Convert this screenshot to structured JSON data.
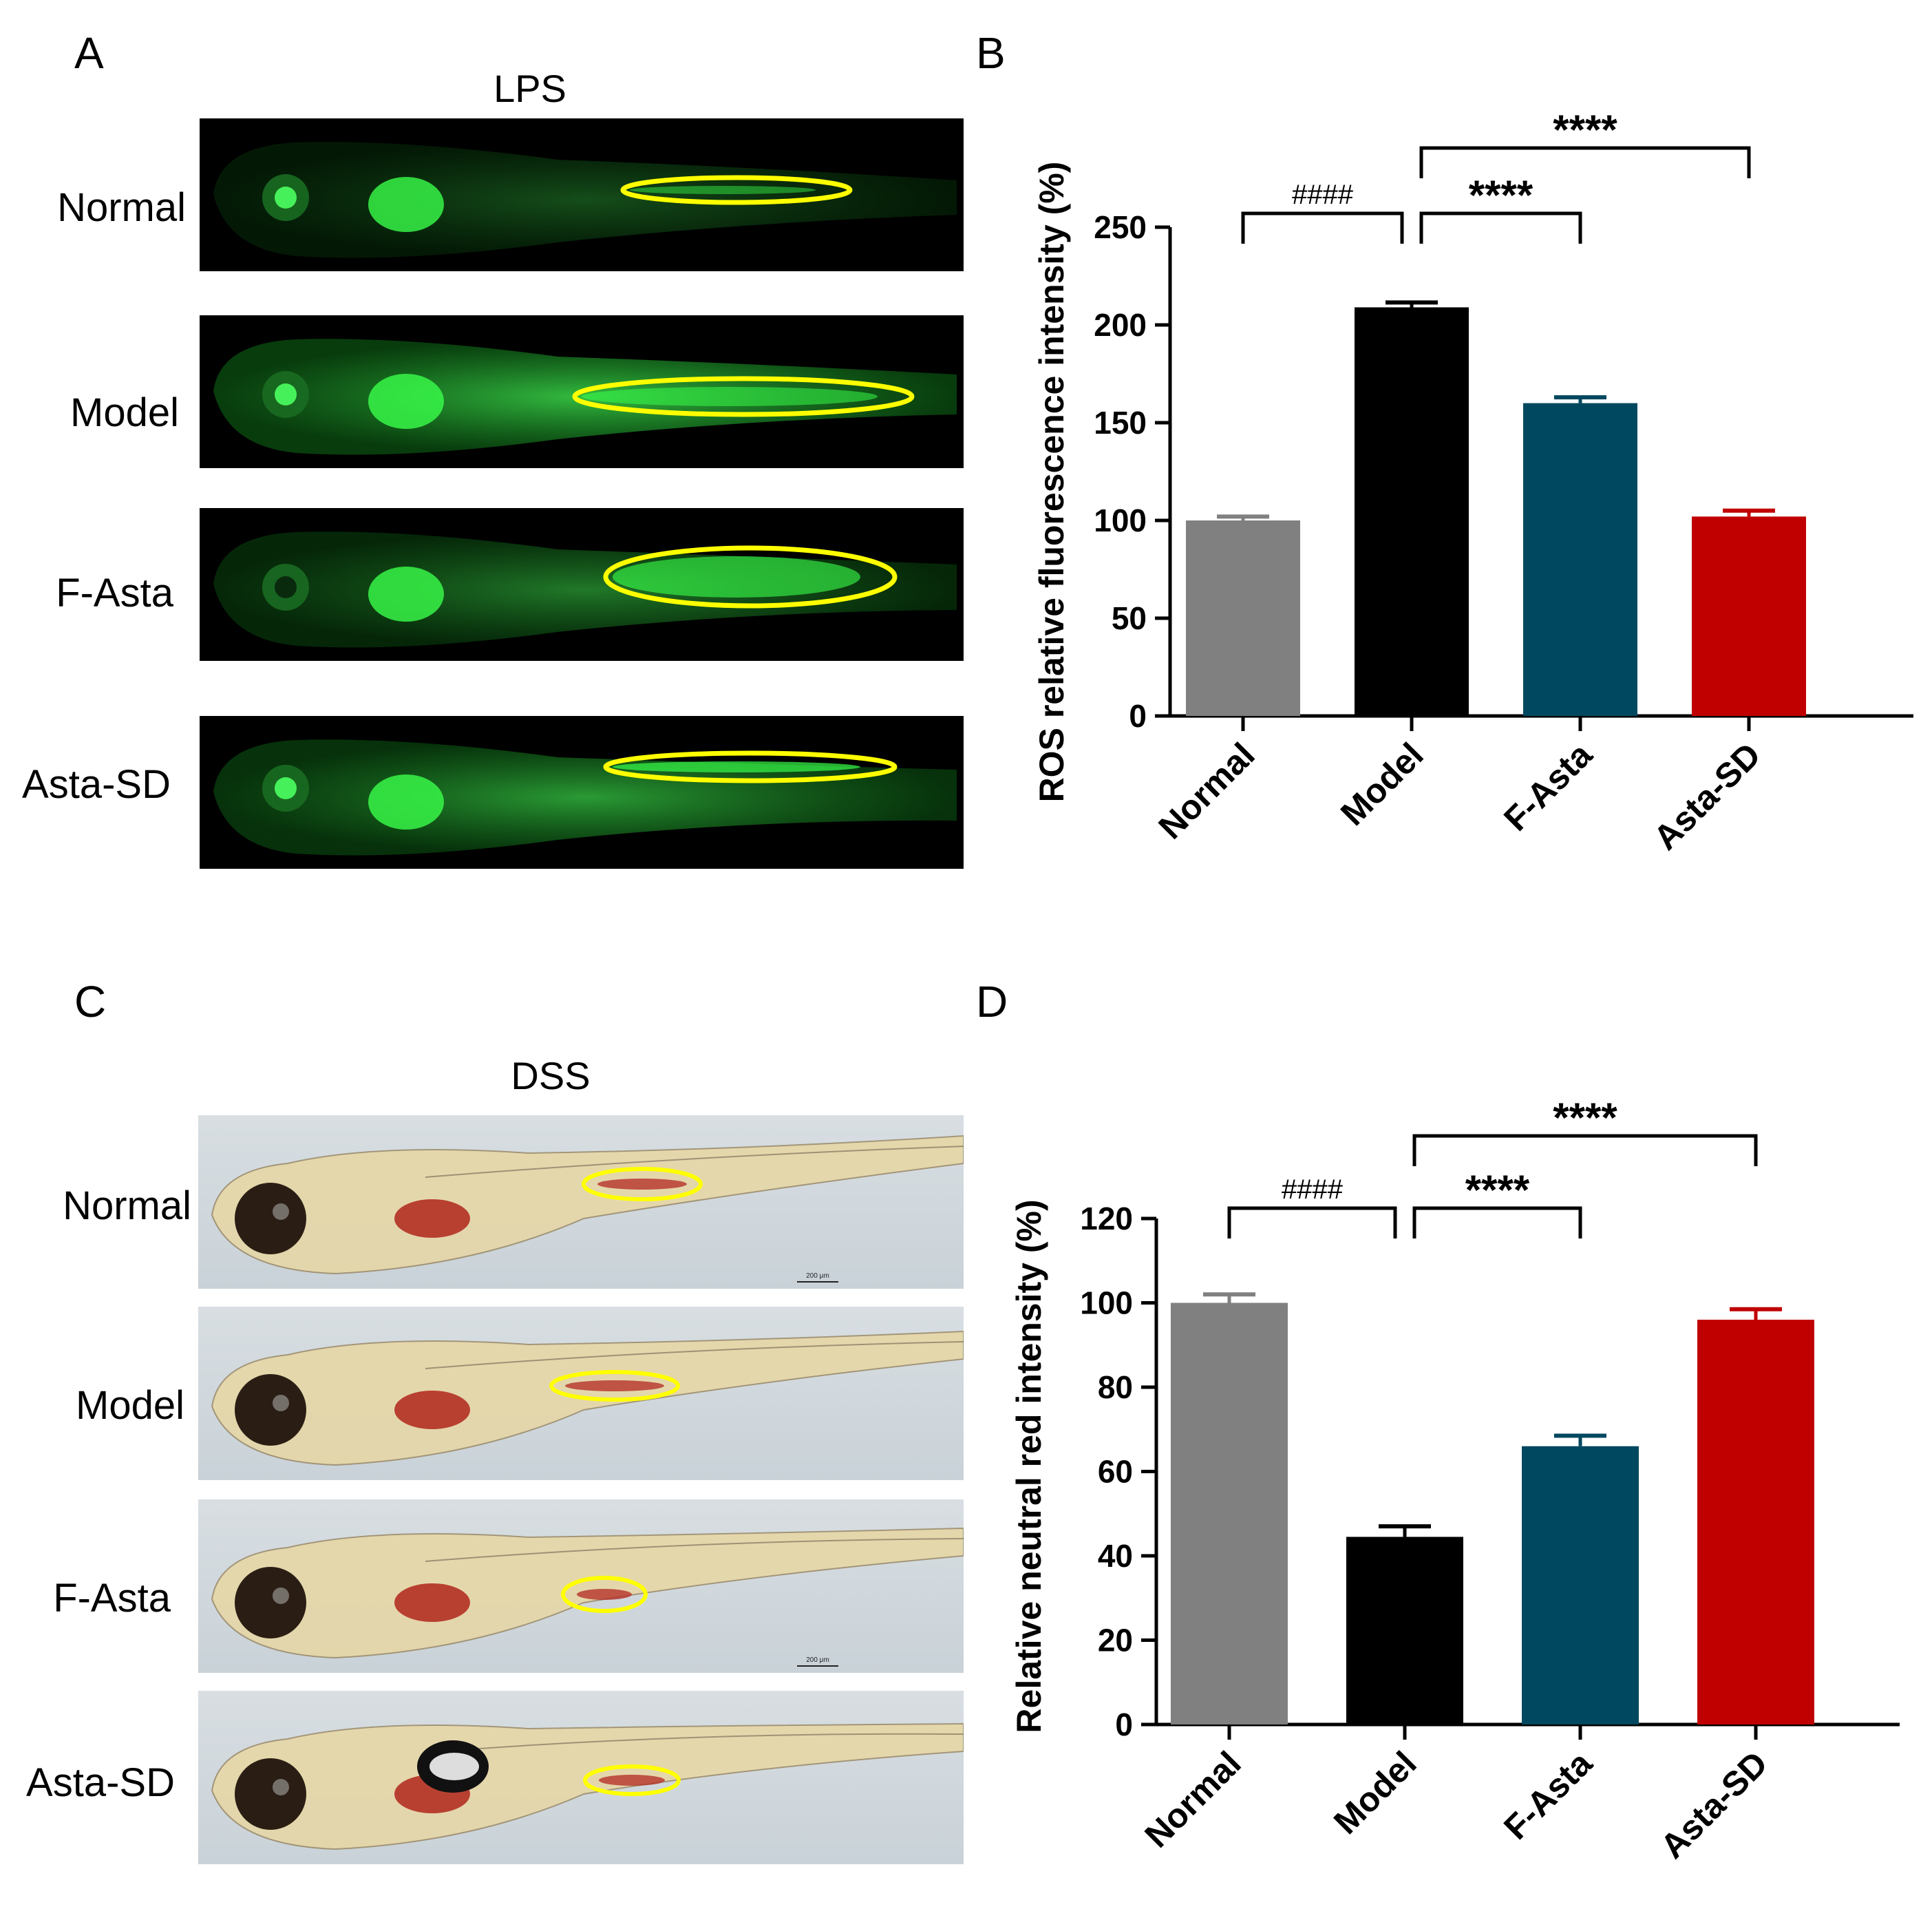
{
  "panels": {
    "A": {
      "letter": "A",
      "condition": "LPS",
      "rows": [
        "Normal",
        "Model",
        "F-Asta",
        "Asta-SD"
      ]
    },
    "C": {
      "letter": "C",
      "condition": "DSS",
      "rows": [
        "Normal",
        "Model",
        "F-Asta",
        "Asta-SD"
      ],
      "scale_bar_label": "200 μm"
    },
    "B": {
      "letter": "B"
    },
    "D": {
      "letter": "D"
    }
  },
  "colors": {
    "normal": "#808080",
    "model": "#000000",
    "f_asta": "#00485f",
    "asta_sd": "#c00000",
    "highlight_ellipse": "#ffff00",
    "fluorescence": "#22cc33"
  },
  "chart_data": [
    {
      "id": "B",
      "type": "bar",
      "categories": [
        "Normal",
        "Model",
        "F-Asta",
        "Asta-SD"
      ],
      "values": [
        100,
        209,
        160,
        102
      ],
      "errors": [
        2,
        2.5,
        3,
        3
      ],
      "ylabel": "ROS relative fluorescence intensity (%)",
      "ylim": [
        0,
        250
      ],
      "yticks": [
        0,
        50,
        100,
        150,
        200,
        250
      ],
      "annotations": [
        {
          "from": "Normal",
          "to": "Model",
          "label": "####",
          "level": 1
        },
        {
          "from": "Model",
          "to": "F-Asta",
          "label": "****",
          "level": 1
        },
        {
          "from": "Model",
          "to": "Asta-SD",
          "label": "****",
          "level": 2
        }
      ]
    },
    {
      "id": "D",
      "type": "bar",
      "categories": [
        "Normal",
        "Model",
        "F-Asta",
        "Asta-SD"
      ],
      "values": [
        100,
        44.5,
        66,
        96
      ],
      "errors": [
        2,
        2.5,
        2.5,
        2.5
      ],
      "ylabel": "Relative neutral red intensity (%)",
      "ylim": [
        0,
        120
      ],
      "yticks": [
        0,
        20,
        40,
        60,
        80,
        100,
        120
      ],
      "annotations": [
        {
          "from": "Normal",
          "to": "Model",
          "label": "####",
          "level": 1
        },
        {
          "from": "Model",
          "to": "F-Asta",
          "label": "****",
          "level": 1
        },
        {
          "from": "Model",
          "to": "Asta-SD",
          "label": "****",
          "level": 2
        }
      ]
    }
  ]
}
